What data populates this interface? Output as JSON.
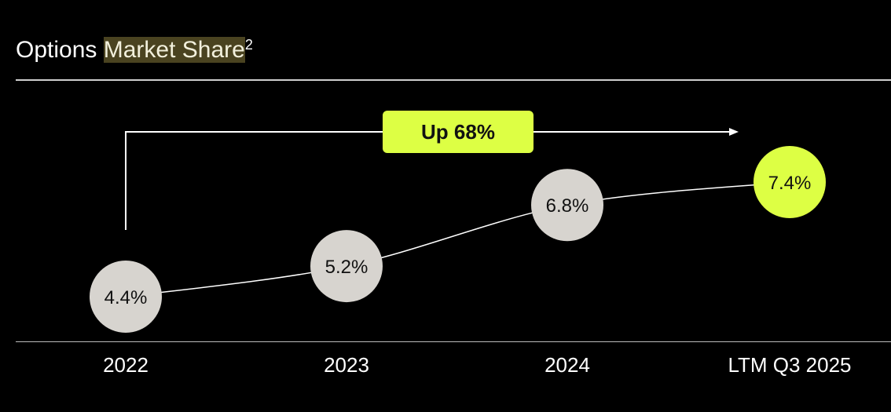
{
  "title": {
    "prefix": "Options",
    "highlight": "Market Share",
    "superscript": "2"
  },
  "callout": {
    "label": "Up 68%",
    "color": "#ddff44"
  },
  "colors": {
    "background": "#000000",
    "point": "#d7d4cf",
    "highlight_point": "#ddff44",
    "line": "#ffffff"
  },
  "chart_data": {
    "type": "line",
    "title": "Options Market Share",
    "categories": [
      "2022",
      "2023",
      "2024",
      "LTM Q3 2025"
    ],
    "values": [
      4.4,
      5.2,
      6.8,
      7.4
    ],
    "value_labels": [
      "4.4%",
      "5.2%",
      "6.8%",
      "7.4%"
    ],
    "highlight_index": 3,
    "grid": false,
    "xlabel": "",
    "ylabel": ""
  }
}
